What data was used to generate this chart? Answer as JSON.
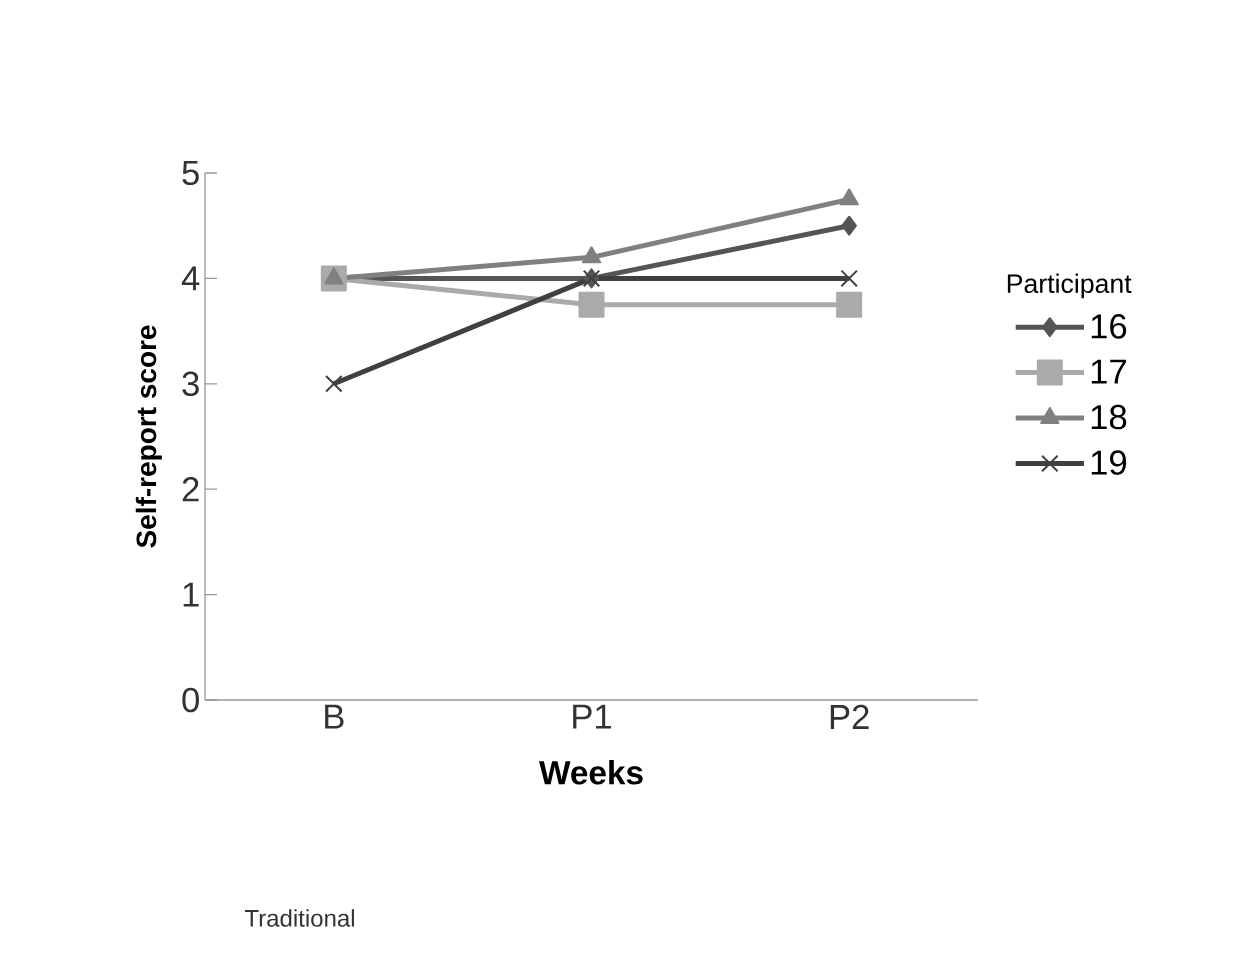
{
  "chart_data": {
    "type": "line",
    "xlabel": "Weeks",
    "ylabel": "Self-report score",
    "legend_title": "Participant",
    "annotations": [
      "Traditional"
    ],
    "categories": [
      "B",
      "P1",
      "P2"
    ],
    "series": [
      {
        "name": "16",
        "color": "#555555",
        "marker": "diamond",
        "values": [
          4,
          4,
          4.5
        ]
      },
      {
        "name": "17",
        "color": "#aaaaaa",
        "marker": "square",
        "values": [
          4,
          3.75,
          3.75
        ]
      },
      {
        "name": "18",
        "color": "#808080",
        "marker": "triangle",
        "values": [
          4,
          4.2,
          4.75
        ]
      },
      {
        "name": "19",
        "color": "#404040",
        "marker": "cross",
        "values": [
          3,
          4,
          4
        ]
      }
    ],
    "ylim": [
      0,
      5
    ],
    "yticks": [
      0,
      1,
      2,
      3,
      4,
      5
    ],
    "legend": "right"
  }
}
